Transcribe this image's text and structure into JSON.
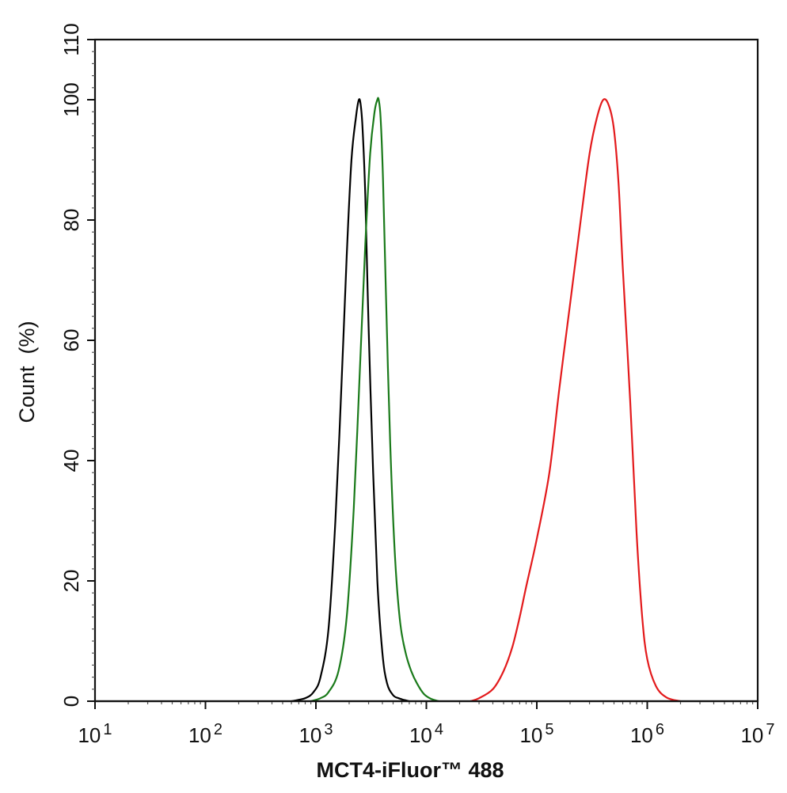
{
  "chart_data": {
    "type": "line",
    "xlabel": "MCT4-iFluor™ 488",
    "ylabel": "Count  (%)",
    "x_scale": "log",
    "xlim": [
      10,
      10000000
    ],
    "ylim": [
      0,
      110
    ],
    "x_ticks": [
      {
        "base": "10",
        "exp": "1"
      },
      {
        "base": "10",
        "exp": "2"
      },
      {
        "base": "10",
        "exp": "3"
      },
      {
        "base": "10",
        "exp": "4"
      },
      {
        "base": "10",
        "exp": "5"
      },
      {
        "base": "10",
        "exp": "6"
      },
      {
        "base": "10",
        "exp": "7"
      }
    ],
    "y_ticks": [
      "0",
      "20",
      "40",
      "60",
      "80",
      "100",
      "110"
    ],
    "grid": false,
    "series": [
      {
        "color": "#000000",
        "x": [
          600,
          800,
          950,
          1100,
          1300,
          1500,
          1700,
          1900,
          2100,
          2300,
          2450,
          2550,
          2650,
          2800,
          3000,
          3300,
          3600,
          4000,
          4400,
          5000,
          5600,
          6300,
          7000
        ],
        "y": [
          0,
          0.5,
          1.5,
          4,
          12,
          30,
          52,
          74,
          90,
          97,
          100,
          99,
          95,
          84,
          62,
          38,
          20,
          8,
          3,
          1,
          0.5,
          0.2,
          0
        ]
      },
      {
        "color": "#1a7a1a",
        "x": [
          900,
          1100,
          1300,
          1600,
          1900,
          2200,
          2500,
          2800,
          3100,
          3400,
          3600,
          3700,
          3850,
          4050,
          4300,
          4700,
          5200,
          5800,
          6500,
          7300,
          8200,
          9500,
          11000,
          13000
        ],
        "y": [
          0,
          0.5,
          1.5,
          5,
          14,
          32,
          55,
          76,
          91,
          98,
          100,
          100,
          97,
          87,
          68,
          43,
          24,
          13,
          8,
          5,
          3,
          1.2,
          0.4,
          0
        ]
      },
      {
        "color": "#e31a1c",
        "x": [
          25000,
          30000,
          40000,
          50000,
          60000,
          70000,
          80000,
          100000,
          130000,
          160000,
          200000,
          250000,
          300000,
          350000,
          400000,
          450000,
          500000,
          550000,
          600000,
          700000,
          800000,
          900000,
          1000000,
          1200000,
          1500000,
          2000000
        ],
        "y": [
          0,
          0.5,
          2,
          5,
          9,
          14,
          19,
          27,
          38,
          52,
          66,
          80,
          91,
          97,
          100,
          99,
          95,
          86,
          72,
          50,
          28,
          14,
          7,
          2.5,
          0.6,
          0
        ]
      }
    ]
  }
}
